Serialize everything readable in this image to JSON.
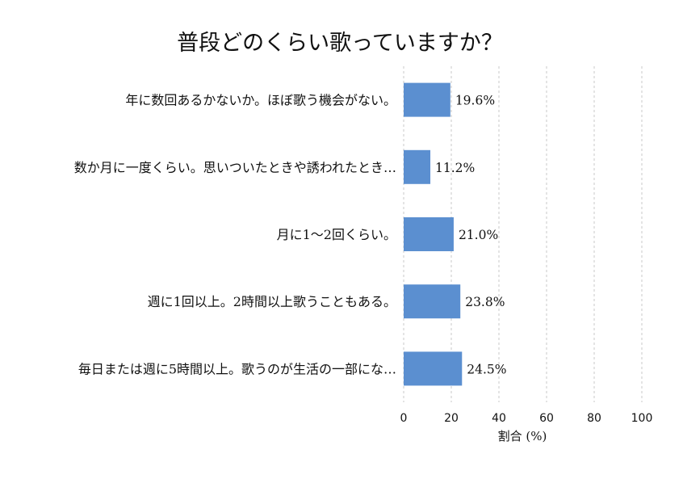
{
  "chart_data": {
    "type": "bar",
    "orientation": "horizontal",
    "title": "普段どのくらい歌っていますか？",
    "xlabel": "割合 (%)",
    "ylabel": "",
    "xlim": [
      0,
      100
    ],
    "xticks": [
      "0",
      "20",
      "40",
      "60",
      "80",
      "100"
    ],
    "grid": "vertical-dashed",
    "categories": [
      "年に数回あるかないか。ほぼ歌う機会がない。",
      "数か月に一度くらい。思いついたときや誘われたとき…",
      "月に1〜2回くらい。",
      "週に1回以上。2時間以上歌うこともある。",
      "毎日または週に5時間以上。歌うのが生活の一部にな…"
    ],
    "values": [
      19.6,
      11.2,
      21.0,
      23.8,
      24.5
    ],
    "value_labels": [
      "19.6%",
      "11.2%",
      "21.0%",
      "23.8%",
      "24.5%"
    ],
    "bar_color": "#5b8fd0"
  }
}
